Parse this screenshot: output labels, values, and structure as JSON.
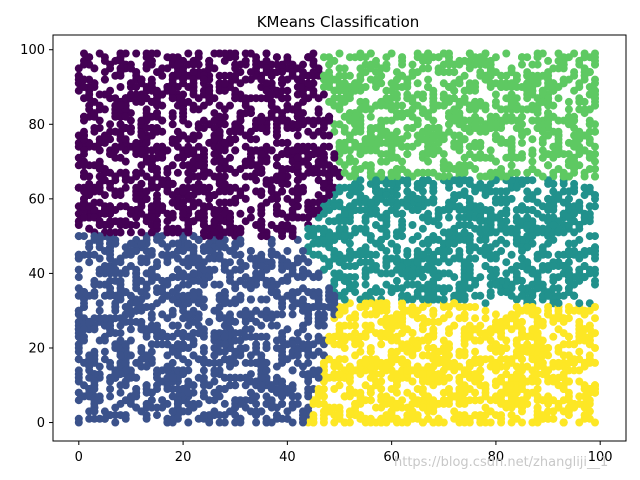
{
  "chart_data": {
    "type": "scatter",
    "title": "KMeans Classification",
    "xlabel": "",
    "ylabel": "",
    "xlim": [
      -4.95,
      104.95
    ],
    "ylim": [
      -4.95,
      103.95
    ],
    "x_ticks": [
      0,
      20,
      40,
      60,
      80,
      100
    ],
    "y_ticks": [
      0,
      20,
      40,
      60,
      80,
      100
    ],
    "grid": false,
    "legend": "none",
    "points_per_cluster": "random uniform points on [0,99]x[0,99] grid, colored by nearest KMeans centroid",
    "series": [
      {
        "color": "#440154",
        "centroid": [
          23,
          75
        ],
        "region": "upper-left"
      },
      {
        "color": "#3b528b",
        "centroid": [
          22,
          25
        ],
        "region": "lower-left"
      },
      {
        "color": "#21918c",
        "centroid": [
          74,
          48
        ],
        "region": "middle-right"
      },
      {
        "color": "#5ec962",
        "centroid": [
          74,
          82
        ],
        "region": "upper-right"
      },
      {
        "color": "#fde725",
        "centroid": [
          73,
          16
        ],
        "region": "lower-right"
      }
    ]
  },
  "watermark": "https://blog.csdn.net/zhangliji__1"
}
